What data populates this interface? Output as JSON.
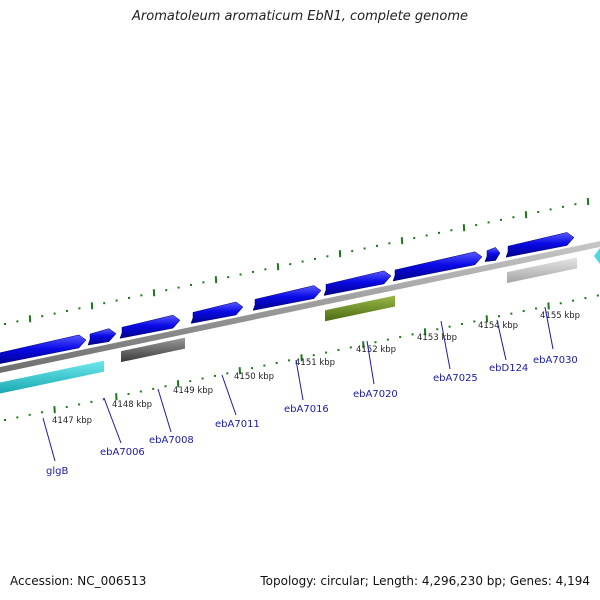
{
  "title": "Aromatoleum aromaticum EbN1, complete genome",
  "footer": {
    "accession": "Accession: NC_006513",
    "topology": "Topology: circular; Length: 4,296,230 bp; Genes: 4,194"
  },
  "kbp_ticks": [
    "4147 kbp",
    "4148 kbp",
    "4149 kbp",
    "4150 kbp",
    "4151 kbp",
    "4152 kbp",
    "4153 kbp",
    "4154 kbp",
    "4155 kbp"
  ],
  "gene_labels": [
    "glgB",
    "ebA7006",
    "ebA7008",
    "ebA7011",
    "ebA7016",
    "ebA7020",
    "ebA7025",
    "ebD124",
    "ebA7030"
  ],
  "colors": {
    "backbone": "#8c8c8c",
    "forward_gene": "#0a0ae6",
    "cds_olive": "#6b8e23",
    "cds_dark_gray": "#606060",
    "cds_light_gray": "#c0c0c0",
    "cds_cyan": "#21c4cc",
    "tick_green": "#1a7a1a",
    "label_blue": "#1a1aa6"
  }
}
